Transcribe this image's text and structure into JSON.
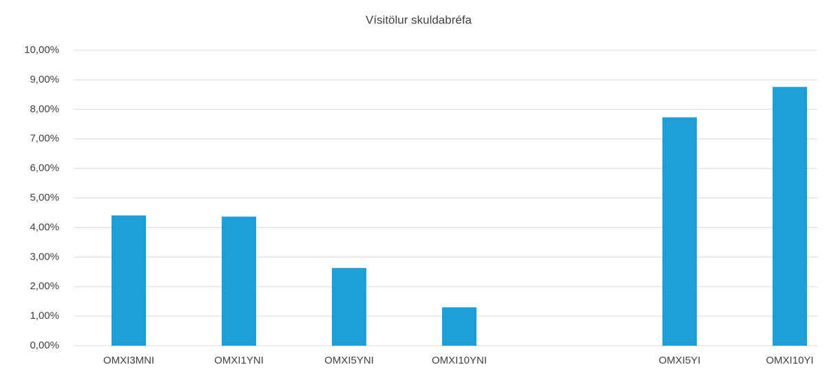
{
  "chart_data": {
    "type": "bar",
    "title": "Vísitölur skuldabréfa",
    "categories": [
      "OMXI3MNI",
      "OMXI1YNI",
      "OMXI5YNI",
      "OMXI10YNI",
      null,
      "OMXI5YI",
      "OMXI10YI"
    ],
    "values": [
      4.41,
      4.37,
      2.63,
      1.3,
      null,
      7.73,
      8.76
    ],
    "color": "#1f9fd9",
    "ylim": [
      0,
      10
    ],
    "yticks": [
      {
        "value": 0,
        "label": "0,00%"
      },
      {
        "value": 1,
        "label": "1,00%"
      },
      {
        "value": 2,
        "label": "2,00%"
      },
      {
        "value": 3,
        "label": "3,00%"
      },
      {
        "value": 4,
        "label": "4,00%"
      },
      {
        "value": 5,
        "label": "5,00%"
      },
      {
        "value": 6,
        "label": "6,00%"
      },
      {
        "value": 7,
        "label": "7,00%"
      },
      {
        "value": 8,
        "label": "8,00%"
      },
      {
        "value": 9,
        "label": "9,00%"
      },
      {
        "value": 10,
        "label": "10,00%"
      }
    ],
    "grid": true
  }
}
